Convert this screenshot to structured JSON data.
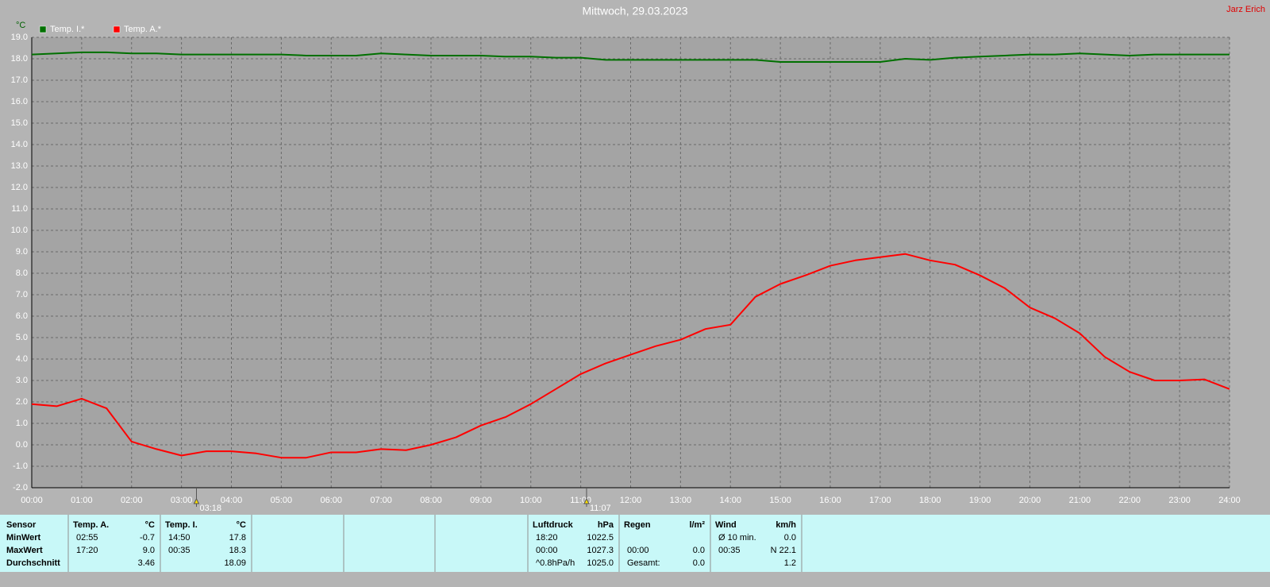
{
  "chart_data": {
    "type": "line",
    "title": "Mittwoch, 29.03.2023",
    "author": "Jarz Erich",
    "y_label": "°C",
    "xlim": [
      0,
      24
    ],
    "ylim": [
      -2,
      19
    ],
    "grid": true,
    "xticks": [
      {
        "value": 0,
        "label": "00:00"
      },
      {
        "value": 1,
        "label": "01:00"
      },
      {
        "value": 2,
        "label": "02:00"
      },
      {
        "value": 3,
        "label": "03:00"
      },
      {
        "value": 4,
        "label": "04:00"
      },
      {
        "value": 5,
        "label": "05:00"
      },
      {
        "value": 6,
        "label": "06:00"
      },
      {
        "value": 7,
        "label": "07:00"
      },
      {
        "value": 8,
        "label": "08:00"
      },
      {
        "value": 9,
        "label": "09:00"
      },
      {
        "value": 10,
        "label": "10:00"
      },
      {
        "value": 11,
        "label": "11:00"
      },
      {
        "value": 12,
        "label": "12:00"
      },
      {
        "value": 13,
        "label": "13:00"
      },
      {
        "value": 14,
        "label": "14:00"
      },
      {
        "value": 15,
        "label": "15:00"
      },
      {
        "value": 16,
        "label": "16:00"
      },
      {
        "value": 17,
        "label": "17:00"
      },
      {
        "value": 18,
        "label": "18:00"
      },
      {
        "value": 19,
        "label": "19:00"
      },
      {
        "value": 20,
        "label": "20:00"
      },
      {
        "value": 21,
        "label": "21:00"
      },
      {
        "value": 22,
        "label": "22:00"
      },
      {
        "value": 23,
        "label": "23:00"
      },
      {
        "value": 24,
        "label": "24:00"
      }
    ],
    "yticks": [
      {
        "value": -2,
        "label": "-2.0"
      },
      {
        "value": -1,
        "label": "-1.0"
      },
      {
        "value": 0,
        "label": "0.0"
      },
      {
        "value": 1,
        "label": "1.0"
      },
      {
        "value": 2,
        "label": "2.0"
      },
      {
        "value": 3,
        "label": "3.0"
      },
      {
        "value": 4,
        "label": "4.0"
      },
      {
        "value": 5,
        "label": "5.0"
      },
      {
        "value": 6,
        "label": "6.0"
      },
      {
        "value": 7,
        "label": "7.0"
      },
      {
        "value": 8,
        "label": "8.0"
      },
      {
        "value": 9,
        "label": "9.0"
      },
      {
        "value": 10,
        "label": "10.0"
      },
      {
        "value": 11,
        "label": "11.0"
      },
      {
        "value": 12,
        "label": "12.0"
      },
      {
        "value": 13,
        "label": "13.0"
      },
      {
        "value": 14,
        "label": "14.0"
      },
      {
        "value": 15,
        "label": "15.0"
      },
      {
        "value": 16,
        "label": "16.0"
      },
      {
        "value": 17,
        "label": "17.0"
      },
      {
        "value": 18,
        "label": "18.0"
      },
      {
        "value": 19,
        "label": "19.0"
      }
    ],
    "x": [
      0,
      0.5,
      1,
      1.5,
      2,
      2.5,
      3,
      3.5,
      4,
      4.5,
      5,
      5.5,
      6,
      6.5,
      7,
      7.5,
      8,
      8.5,
      9,
      9.5,
      10,
      10.5,
      11,
      11.5,
      12,
      12.5,
      13,
      13.5,
      14,
      14.5,
      15,
      15.5,
      16,
      16.5,
      17,
      17.5,
      18,
      18.5,
      19,
      19.5,
      20,
      20.5,
      21,
      21.5,
      22,
      22.5,
      23,
      23.5,
      24
    ],
    "series": [
      {
        "name": "Temp. I.*",
        "color": "#007000",
        "values": [
          18.2,
          18.25,
          18.3,
          18.3,
          18.25,
          18.25,
          18.2,
          18.2,
          18.2,
          18.2,
          18.2,
          18.15,
          18.15,
          18.15,
          18.25,
          18.2,
          18.15,
          18.15,
          18.15,
          18.1,
          18.1,
          18.05,
          18.05,
          17.95,
          17.95,
          17.95,
          17.95,
          17.95,
          17.95,
          17.95,
          17.85,
          17.85,
          17.85,
          17.85,
          17.85,
          18.0,
          17.95,
          18.05,
          18.1,
          18.15,
          18.2,
          18.2,
          18.25,
          18.2,
          18.15,
          18.2,
          18.2,
          18.2,
          18.2
        ]
      },
      {
        "name": "Temp. A.*",
        "color": "#ff0000",
        "values": [
          1.9,
          1.8,
          2.15,
          1.7,
          0.15,
          -0.2,
          -0.5,
          -0.3,
          -0.3,
          -0.4,
          -0.6,
          -0.6,
          -0.35,
          -0.35,
          -0.2,
          -0.25,
          0.0,
          0.35,
          0.9,
          1.3,
          1.9,
          2.6,
          3.3,
          3.8,
          4.2,
          4.6,
          4.9,
          5.4,
          5.6,
          6.9,
          7.5,
          7.9,
          8.35,
          8.6,
          8.75,
          8.9,
          8.6,
          8.4,
          7.9,
          7.3,
          6.4,
          5.9,
          5.2,
          4.1,
          3.4,
          3.0,
          3.0,
          3.05,
          2.6
        ]
      }
    ],
    "markers": [
      {
        "x": 3.3,
        "label": "03:18"
      },
      {
        "x": 11.117,
        "label": "11:07"
      }
    ]
  },
  "stats": {
    "row_labels": [
      "Sensor",
      "MinWert",
      "MaxWert",
      "Durchschnitt"
    ],
    "panels": [
      {
        "header": [
          "Temp. A.",
          "°C"
        ],
        "rows": [
          [
            "02:55",
            "-0.7"
          ],
          [
            "17:20",
            "9.0"
          ],
          [
            null,
            "3.46"
          ]
        ]
      },
      {
        "header": [
          "Temp. I.",
          "°C"
        ],
        "rows": [
          [
            "14:50",
            "17.8"
          ],
          [
            "00:35",
            "18.3"
          ],
          [
            null,
            "18.09"
          ]
        ]
      },
      {
        "header": [
          "Luftdruck",
          "hPa"
        ],
        "rows": [
          [
            "18:20",
            "1022.5"
          ],
          [
            "00:00",
            "1027.3"
          ],
          [
            "^0.8hPa/h",
            "1025.0"
          ]
        ]
      },
      {
        "header": [
          "Regen",
          "l/m²"
        ],
        "rows": [
          [
            null,
            null
          ],
          [
            "00:00",
            "0.0"
          ],
          [
            "Gesamt:",
            "0.0"
          ]
        ]
      },
      {
        "header": [
          "Wind",
          "km/h"
        ],
        "rows": [
          [
            "Ø 10 min.",
            "0.0"
          ],
          [
            "00:35",
            "N 22.1"
          ],
          [
            null,
            "1.2"
          ]
        ]
      }
    ]
  }
}
